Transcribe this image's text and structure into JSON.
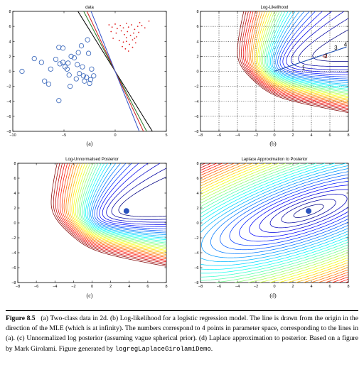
{
  "chart_data": [
    {
      "type": "scatter",
      "title": "data",
      "panel_label": "(a)",
      "xlim": [
        -10,
        5
      ],
      "ylim": [
        -8,
        8
      ],
      "xticks": [
        -10,
        -5,
        0,
        5
      ],
      "yticks": [
        -8,
        -6,
        -4,
        -2,
        0,
        2,
        4,
        6,
        8
      ],
      "grid": false,
      "series": [
        {
          "marker": "open-circle",
          "color": "#3060b8",
          "points": [
            [
              -9.1,
              0.0
            ],
            [
              -7.9,
              1.7
            ],
            [
              -7.2,
              1.2
            ],
            [
              -6.9,
              -1.3
            ],
            [
              -6.5,
              -1.7
            ],
            [
              -6.3,
              0.3
            ],
            [
              -5.8,
              1.6
            ],
            [
              -5.5,
              3.2
            ],
            [
              -5.1,
              3.1
            ],
            [
              -5.4,
              1.0
            ],
            [
              -5.1,
              1.2
            ],
            [
              -4.9,
              0.6
            ],
            [
              -4.6,
              1.1
            ],
            [
              -4.5,
              -0.5
            ],
            [
              -4.3,
              2.0
            ],
            [
              -4.0,
              1.8
            ],
            [
              -3.7,
              0.9
            ],
            [
              -3.6,
              2.5
            ],
            [
              -3.3,
              3.4
            ],
            [
              -3.2,
              0.6
            ],
            [
              -2.8,
              -0.8
            ],
            [
              -2.5,
              -1.6
            ],
            [
              -2.6,
              2.4
            ],
            [
              -2.3,
              0.3
            ],
            [
              -2.1,
              -0.6
            ],
            [
              -3.8,
              -1.0
            ],
            [
              -3.5,
              -0.3
            ],
            [
              -3.0,
              -1.3
            ],
            [
              -2.7,
              4.2
            ],
            [
              -4.4,
              -2.0
            ],
            [
              -2.4,
              -1.1
            ],
            [
              -5.5,
              -3.9
            ],
            [
              -3.1,
              -0.6
            ],
            [
              -4.7,
              0.3
            ]
          ]
        },
        {
          "marker": "dot",
          "color": "#e02020",
          "points": [
            [
              -0.6,
              6.2
            ],
            [
              -0.3,
              5.9
            ],
            [
              0.0,
              6.3
            ],
            [
              0.2,
              5.7
            ],
            [
              0.5,
              6.1
            ],
            [
              0.8,
              5.8
            ],
            [
              1.1,
              6.4
            ],
            [
              1.3,
              5.9
            ],
            [
              1.6,
              6.2
            ],
            [
              1.9,
              5.6
            ],
            [
              2.2,
              6.0
            ],
            [
              2.4,
              6.5
            ],
            [
              2.6,
              6.1
            ],
            [
              2.9,
              5.8
            ],
            [
              3.3,
              6.7
            ],
            [
              -0.4,
              5.3
            ],
            [
              0.1,
              5.1
            ],
            [
              0.6,
              5.4
            ],
            [
              0.9,
              4.9
            ],
            [
              1.2,
              5.3
            ],
            [
              1.5,
              4.8
            ],
            [
              1.8,
              5.1
            ],
            [
              2.1,
              4.6
            ],
            [
              2.3,
              5.2
            ],
            [
              -0.2,
              4.4
            ],
            [
              0.4,
              4.1
            ],
            [
              0.8,
              3.9
            ],
            [
              1.1,
              4.5
            ],
            [
              1.4,
              3.6
            ],
            [
              1.7,
              4.2
            ],
            [
              2.0,
              3.8
            ],
            [
              0.7,
              3.3
            ],
            [
              1.0,
              3.0
            ],
            [
              1.3,
              2.7
            ],
            [
              1.7,
              3.2
            ],
            [
              1.1,
              4.0
            ],
            [
              1.9,
              4.4
            ]
          ]
        }
      ],
      "lines": [
        {
          "color": "#000000",
          "slope": -2.2
        },
        {
          "color": "#2a7a2a",
          "slope": -2.6
        },
        {
          "color": "#d02020",
          "slope": -2.9
        },
        {
          "color": "#3050c8",
          "slope": -3.4
        }
      ]
    },
    {
      "type": "contour",
      "title": "Log-Likelihood",
      "panel_label": "(b)",
      "xlim": [
        -8,
        8
      ],
      "ylim": [
        -8,
        8
      ],
      "xticks": [
        -8,
        -6,
        -4,
        -2,
        0,
        2,
        4,
        6,
        8
      ],
      "yticks": [
        -8,
        -6,
        -4,
        -2,
        0,
        2,
        4,
        6,
        8
      ],
      "grid": true,
      "mle_direction": [
        7.8,
        3.25
      ],
      "numbered_points": [
        {
          "label": "1",
          "x": 3.3,
          "y": 1.0
        },
        {
          "label": "2",
          "x": 5.5,
          "y": 2.1
        },
        {
          "label": "3",
          "x": 6.8,
          "y": 2.7
        },
        {
          "label": "4",
          "x": 8.0,
          "y": 3.4
        }
      ]
    },
    {
      "type": "contour",
      "title": "Log-Unnormalised Posterior",
      "panel_label": "(c)",
      "xlim": [
        -8,
        8
      ],
      "ylim": [
        -8,
        8
      ],
      "xticks": [
        -8,
        -6,
        -4,
        -2,
        0,
        2,
        4,
        6,
        8
      ],
      "yticks": [
        -8,
        -6,
        -4,
        -2,
        0,
        2,
        4,
        6,
        8
      ],
      "grid": false,
      "map_point": [
        3.7,
        1.6
      ]
    },
    {
      "type": "contour",
      "title": "Laplace Approximation to Posterior",
      "panel_label": "(d)",
      "xlim": [
        -8,
        8
      ],
      "ylim": [
        -8,
        8
      ],
      "xticks": [
        -8,
        -6,
        -4,
        -2,
        0,
        2,
        4,
        6,
        8
      ],
      "yticks": [
        -8,
        -6,
        -4,
        -2,
        0,
        2,
        4,
        6,
        8
      ],
      "grid": false,
      "map_point": [
        3.7,
        1.6
      ]
    }
  ],
  "caption": {
    "label": "Figure 8.5",
    "text": "(a) Two-class data in 2d. (b) Log-likelihood for a logistic regression model. The line is drawn from the origin in the direction of the MLE (which is at infinity). The numbers correspond to 4 points in parameter space, corresponding to the lines in (a). (c) Unnormalized log posterior (assuming vague spherical prior). (d) Laplace approximation to posterior. Based on a figure by Mark Girolami. Figure generated by",
    "code": "logregLaplaceGirolamiDemo",
    "end": "."
  }
}
